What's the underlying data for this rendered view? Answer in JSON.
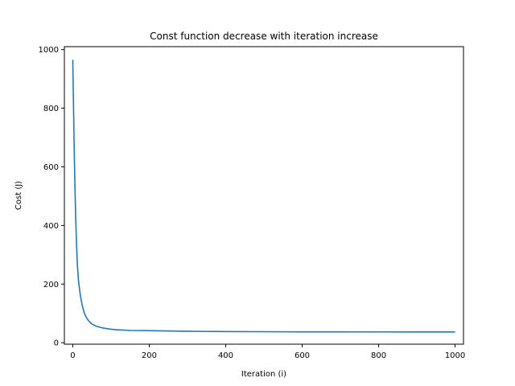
{
  "chart_data": {
    "type": "line",
    "title": "Const function decrease with iteration increase",
    "xlabel": "Iteration (i)",
    "ylabel": "Cost (J)",
    "xlim": [
      -22,
      1022
    ],
    "ylim": [
      -5,
      1010
    ],
    "xticks": [
      0,
      200,
      400,
      600,
      800,
      1000
    ],
    "yticks": [
      0,
      200,
      400,
      600,
      800,
      1000
    ],
    "grid": false,
    "series": [
      {
        "color": "#1f77b4",
        "x": [
          0,
          2,
          4,
          6,
          8,
          10,
          12,
          15,
          20,
          25,
          30,
          35,
          40,
          45,
          50,
          60,
          70,
          80,
          90,
          100,
          120,
          150,
          200,
          250,
          300,
          400,
          500,
          600,
          700,
          800,
          900,
          1000
        ],
        "y": [
          965,
          800,
          640,
          510,
          410,
          330,
          265,
          210,
          160,
          125,
          102,
          87,
          77,
          70,
          64,
          57,
          53,
          50,
          48,
          46,
          44,
          42,
          41,
          40,
          39,
          38,
          37.5,
          37,
          37,
          36.8,
          36.7,
          36.6
        ]
      }
    ]
  }
}
